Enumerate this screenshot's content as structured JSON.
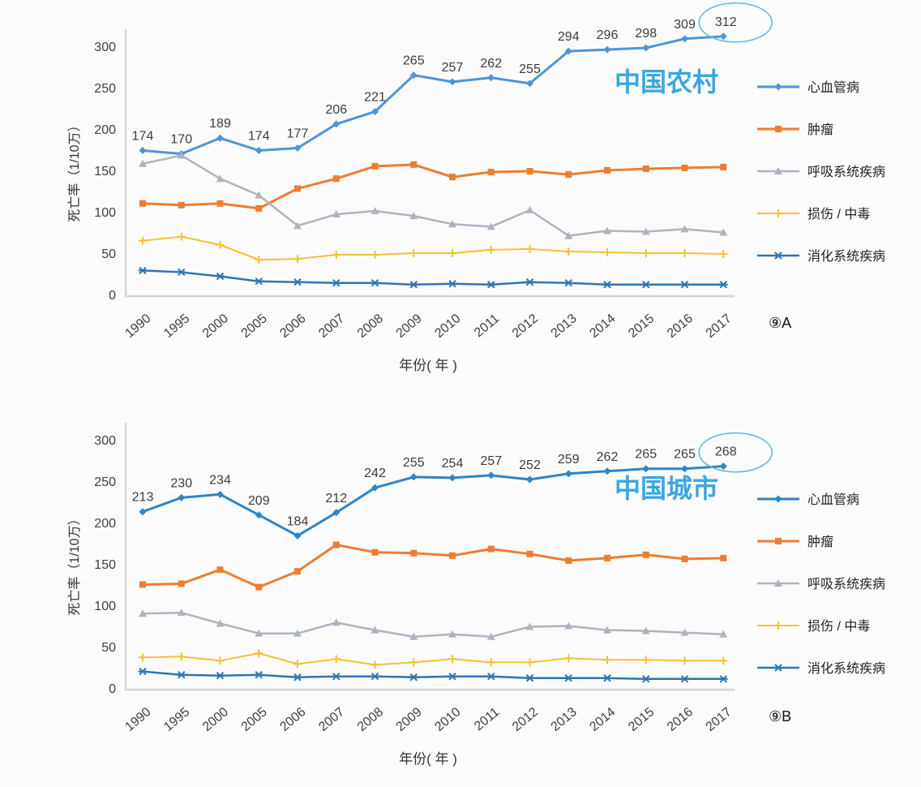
{
  "page": {
    "background": "#fbfbfb"
  },
  "chart_data": [
    {
      "type": "line",
      "title": "中国农村",
      "title_color": "#3aa6e0",
      "accent_circle_color": "#63b6e6",
      "figure_label": "⑨A",
      "xlabel": "年份( 年 )",
      "ylabel": "死亡率（1/10万）",
      "ylim": [
        0,
        320
      ],
      "yticks": [
        0,
        50,
        100,
        150,
        200,
        250,
        300
      ],
      "grid": false,
      "legend_position": "right",
      "categories": [
        "1990",
        "1995",
        "2000",
        "2005",
        "2006",
        "2007",
        "2008",
        "2009",
        "2010",
        "2011",
        "2012",
        "2013",
        "2014",
        "2015",
        "2016",
        "2017"
      ],
      "series": [
        {
          "key": "cardiovascular",
          "name": "心血管病",
          "color": "#4e95d9",
          "marker": "diamond",
          "line_width": 3,
          "show_labels": true,
          "circle_last": true,
          "values": [
            174,
            170,
            189,
            174,
            177,
            206,
            221,
            265,
            257,
            262,
            255,
            294,
            296,
            298,
            309,
            312
          ]
        },
        {
          "key": "tumor",
          "name": "肿瘤",
          "color": "#ed7d31",
          "marker": "square",
          "line_width": 3,
          "show_labels": false,
          "circle_last": false,
          "values": [
            110,
            108,
            110,
            104,
            128,
            140,
            155,
            157,
            142,
            148,
            149,
            145,
            150,
            152,
            153,
            154
          ]
        },
        {
          "key": "respiratory",
          "name": "呼吸系统疾病",
          "color": "#aeb4bf",
          "marker": "triangle",
          "line_width": 2.5,
          "show_labels": false,
          "circle_last": false,
          "values": [
            158,
            168,
            140,
            120,
            83,
            97,
            101,
            95,
            85,
            82,
            102,
            71,
            77,
            76,
            79,
            75
          ]
        },
        {
          "key": "injury-poisoning",
          "name": "损伤 / 中毒",
          "color": "#f5c033",
          "marker": "plus",
          "line_width": 2,
          "show_labels": false,
          "circle_last": false,
          "values": [
            65,
            70,
            60,
            42,
            43,
            48,
            48,
            50,
            50,
            54,
            55,
            52,
            51,
            50,
            50,
            49
          ]
        },
        {
          "key": "digestive",
          "name": "消化系统疾病",
          "color": "#2e75b6",
          "marker": "xcross",
          "line_width": 2.5,
          "show_labels": false,
          "circle_last": false,
          "values": [
            29,
            27,
            22,
            16,
            15,
            14,
            14,
            12,
            13,
            12,
            15,
            14,
            12,
            12,
            12,
            12
          ]
        }
      ]
    },
    {
      "type": "line",
      "title": "中国城市",
      "title_color": "#3aa6e0",
      "accent_circle_color": "#63b6e6",
      "figure_label": "⑨B",
      "xlabel": "年份( 年 )",
      "ylabel": "死亡率（1/10万）",
      "ylim": [
        0,
        320
      ],
      "yticks": [
        0,
        50,
        100,
        150,
        200,
        250,
        300
      ],
      "grid": false,
      "legend_position": "right",
      "categories": [
        "1990",
        "1995",
        "2000",
        "2005",
        "2006",
        "2007",
        "2008",
        "2009",
        "2010",
        "2011",
        "2012",
        "2013",
        "2014",
        "2015",
        "2016",
        "2017"
      ],
      "series": [
        {
          "key": "cardiovascular",
          "name": "心血管病",
          "color": "#2e85c8",
          "marker": "diamond",
          "line_width": 3,
          "show_labels": true,
          "circle_last": true,
          "values": [
            213,
            230,
            234,
            209,
            184,
            212,
            242,
            255,
            254,
            257,
            252,
            259,
            262,
            265,
            265,
            268
          ]
        },
        {
          "key": "tumor",
          "name": "肿瘤",
          "color": "#ed7d31",
          "marker": "square",
          "line_width": 3,
          "show_labels": false,
          "circle_last": false,
          "values": [
            125,
            126,
            143,
            122,
            141,
            173,
            164,
            163,
            160,
            168,
            162,
            154,
            157,
            161,
            156,
            157
          ]
        },
        {
          "key": "respiratory",
          "name": "呼吸系统疾病",
          "color": "#aeb4bf",
          "marker": "triangle",
          "line_width": 2.5,
          "show_labels": false,
          "circle_last": false,
          "values": [
            90,
            91,
            78,
            66,
            66,
            79,
            70,
            62,
            65,
            62,
            74,
            75,
            70,
            69,
            67,
            65
          ]
        },
        {
          "key": "injury-poisoning",
          "name": "损伤 / 中毒",
          "color": "#f5c033",
          "marker": "plus",
          "line_width": 2,
          "show_labels": false,
          "circle_last": false,
          "values": [
            37,
            38,
            33,
            42,
            29,
            35,
            28,
            31,
            35,
            31,
            31,
            36,
            34,
            34,
            33,
            33
          ]
        },
        {
          "key": "digestive",
          "name": "消化系统疾病",
          "color": "#2e75b6",
          "marker": "xcross",
          "line_width": 2.5,
          "show_labels": false,
          "circle_last": false,
          "values": [
            20,
            16,
            15,
            16,
            13,
            14,
            14,
            13,
            14,
            14,
            12,
            12,
            12,
            11,
            11,
            11
          ]
        }
      ]
    }
  ]
}
